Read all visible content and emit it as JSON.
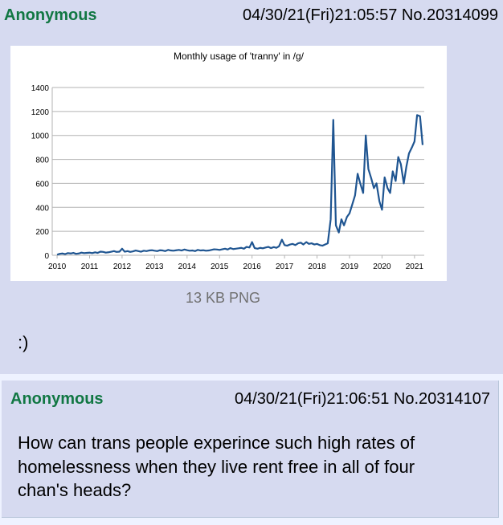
{
  "posts": [
    {
      "name": "Anonymous",
      "datetime": "04/30/21(Fri)21:05:57",
      "number": "No.20314099",
      "file_info": "13 KB PNG",
      "comment": ":)"
    },
    {
      "name": "Anonymous",
      "datetime": "04/30/21(Fri)21:06:51",
      "number": "No.20314107",
      "comment_lines": [
        "How can trans people experince such high rates of",
        "homelessness when they live rent free in all of four",
        "chan's heads?"
      ]
    }
  ],
  "chart_data": {
    "type": "line",
    "title": "Monthly usage of 'tranny' in /g/",
    "x": [
      2010,
      2010.08,
      2010.17,
      2010.25,
      2010.33,
      2010.42,
      2010.5,
      2010.58,
      2010.67,
      2010.75,
      2010.83,
      2010.92,
      2011,
      2011.08,
      2011.17,
      2011.25,
      2011.33,
      2011.42,
      2011.5,
      2011.58,
      2011.67,
      2011.75,
      2011.83,
      2011.92,
      2012,
      2012.08,
      2012.17,
      2012.25,
      2012.33,
      2012.42,
      2012.5,
      2012.58,
      2012.67,
      2012.75,
      2012.83,
      2012.92,
      2013,
      2013.08,
      2013.17,
      2013.25,
      2013.33,
      2013.42,
      2013.5,
      2013.58,
      2013.67,
      2013.75,
      2013.83,
      2013.92,
      2014,
      2014.08,
      2014.17,
      2014.25,
      2014.33,
      2014.42,
      2014.5,
      2014.58,
      2014.67,
      2014.75,
      2014.83,
      2014.92,
      2015,
      2015.08,
      2015.17,
      2015.25,
      2015.33,
      2015.42,
      2015.5,
      2015.58,
      2015.67,
      2015.75,
      2015.83,
      2015.92,
      2016,
      2016.08,
      2016.17,
      2016.25,
      2016.33,
      2016.42,
      2016.5,
      2016.58,
      2016.67,
      2016.75,
      2016.83,
      2016.92,
      2017,
      2017.08,
      2017.17,
      2017.25,
      2017.33,
      2017.42,
      2017.5,
      2017.58,
      2017.67,
      2017.75,
      2017.83,
      2017.92,
      2018,
      2018.08,
      2018.17,
      2018.25,
      2018.33,
      2018.42,
      2018.5,
      2018.58,
      2018.67,
      2018.75,
      2018.83,
      2018.92,
      2019,
      2019.08,
      2019.17,
      2019.25,
      2019.33,
      2019.42,
      2019.5,
      2019.58,
      2019.67,
      2019.75,
      2019.83,
      2019.92,
      2020,
      2020.08,
      2020.17,
      2020.25,
      2020.33,
      2020.42,
      2020.5,
      2020.58,
      2020.67,
      2020.75,
      2020.83,
      2020.92,
      2021,
      2021.08,
      2021.17,
      2021.25
    ],
    "series": [
      {
        "color": "#1f5591",
        "values": [
          5,
          12,
          15,
          10,
          18,
          15,
          20,
          12,
          15,
          22,
          18,
          20,
          22,
          18,
          25,
          20,
          30,
          28,
          22,
          25,
          30,
          35,
          28,
          30,
          55,
          30,
          35,
          28,
          32,
          40,
          35,
          30,
          38,
          35,
          40,
          42,
          38,
          35,
          42,
          40,
          35,
          45,
          40,
          38,
          42,
          45,
          40,
          48,
          42,
          38,
          40,
          35,
          45,
          40,
          42,
          38,
          40,
          45,
          50,
          48,
          45,
          50,
          55,
          48,
          60,
          52,
          55,
          58,
          62,
          55,
          70,
          65,
          110,
          60,
          55,
          62,
          58,
          65,
          70,
          60,
          68,
          62,
          75,
          130,
          85,
          80,
          90,
          95,
          85,
          100,
          105,
          90,
          110,
          95,
          100,
          90,
          95,
          85,
          80,
          90,
          100,
          300,
          1130,
          250,
          190,
          300,
          250,
          320,
          350,
          420,
          500,
          680,
          600,
          520,
          1000,
          720,
          640,
          560,
          600,
          450,
          380,
          650,
          560,
          520,
          700,
          620,
          820,
          760,
          600,
          740,
          850,
          900,
          950,
          1170,
          1160,
          920
        ]
      }
    ],
    "xlim": [
      2009.85,
      2021.3
    ],
    "xticks": [
      2010,
      2011,
      2012,
      2013,
      2014,
      2015,
      2016,
      2017,
      2018,
      2019,
      2020,
      2021
    ],
    "ylim": [
      0,
      1400
    ],
    "yticks": [
      0,
      200,
      400,
      600,
      800,
      1000,
      1200,
      1400
    ],
    "grid": true
  }
}
